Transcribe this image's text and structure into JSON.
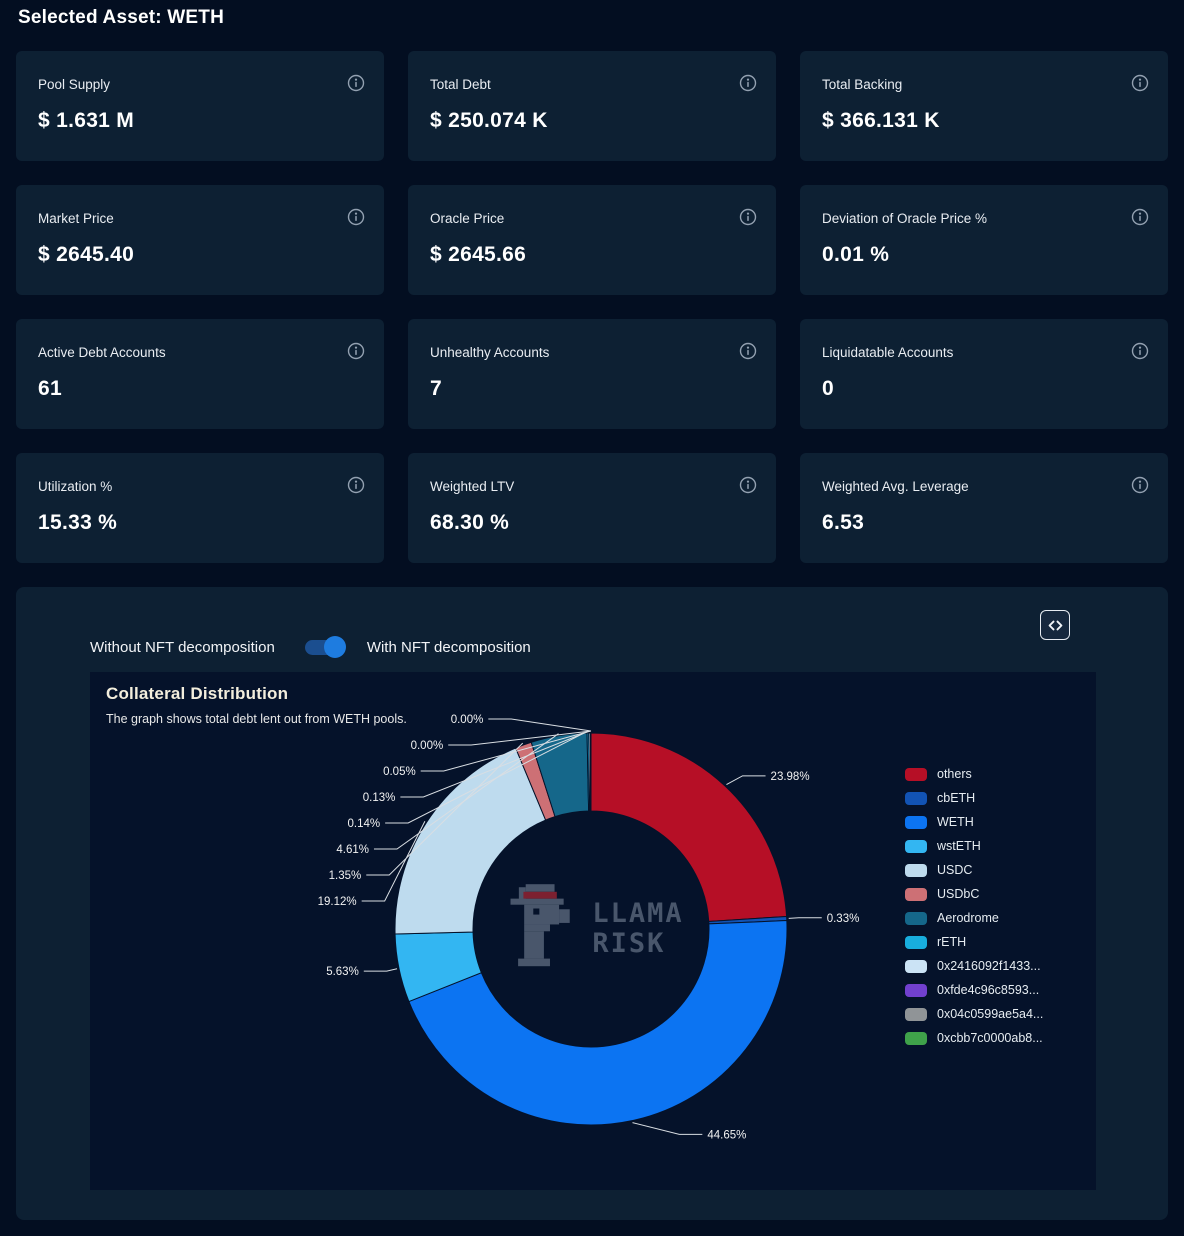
{
  "page_title": "Selected Asset: WETH",
  "cards": [
    {
      "label": "Pool Supply",
      "value": "$ 1.631 M"
    },
    {
      "label": "Total Debt",
      "value": "$ 250.074 K"
    },
    {
      "label": "Total Backing",
      "value": "$ 366.131 K"
    },
    {
      "label": "Market Price",
      "value": "$ 2645.40"
    },
    {
      "label": "Oracle Price",
      "value": "$ 2645.66"
    },
    {
      "label": "Deviation of Oracle Price %",
      "value": "0.01 %"
    },
    {
      "label": "Active Debt Accounts",
      "value": "61"
    },
    {
      "label": "Unhealthy Accounts",
      "value": "7"
    },
    {
      "label": "Liquidatable Accounts",
      "value": "0"
    },
    {
      "label": "Utilization %",
      "value": "15.33 %"
    },
    {
      "label": "Weighted LTV",
      "value": "68.30 %"
    },
    {
      "label": "Weighted Avg. Leverage",
      "value": "6.53"
    }
  ],
  "toggle": {
    "left_label": "Without NFT decomposition",
    "right_label": "With NFT decomposition",
    "state": "on",
    "accent_color": "#1e7ce0"
  },
  "chart_data": {
    "type": "pie",
    "donut": true,
    "title": "Collateral Distribution",
    "subtitle": "The graph shows total debt lent out from WETH pools.",
    "legend_position": "right",
    "units": "percent",
    "series": [
      {
        "name": "others",
        "value": 23.98,
        "label": "23.98%",
        "color": "#b60f26"
      },
      {
        "name": "cbETH",
        "value": 0.33,
        "label": "0.33%",
        "color": "#1253b4"
      },
      {
        "name": "WETH",
        "value": 44.65,
        "label": "44.65%",
        "color": "#0c74f2"
      },
      {
        "name": "wstETH",
        "value": 5.63,
        "label": "5.63%",
        "color": "#33b6f2"
      },
      {
        "name": "USDC",
        "value": 19.12,
        "label": "19.12%",
        "color": "#bedbee"
      },
      {
        "name": "USDbC",
        "value": 1.35,
        "label": "1.35%",
        "color": "#cd7075"
      },
      {
        "name": "Aerodrome",
        "value": 4.61,
        "label": "4.61%",
        "color": "#15678a"
      },
      {
        "name": "rETH",
        "value": 0.14,
        "label": "0.14%",
        "color": "#18aede"
      },
      {
        "name": "0x2416092f1433...",
        "value": 0.13,
        "label": "0.13%",
        "color": "#cbe3f5"
      },
      {
        "name": "0xfde4c96c8593...",
        "value": 0.05,
        "label": "0.05%",
        "color": "#7240cf"
      },
      {
        "name": "0x04c0599ae5a4...",
        "value": 0.0,
        "label": "0.00%",
        "color": "#909497"
      },
      {
        "name": "0xcbb7c0000ab8...",
        "value": 0.0,
        "label": "0.00%",
        "color": "#3fa24a"
      }
    ],
    "watermark_line1": "LLAMA",
    "watermark_line2": "RISK"
  }
}
